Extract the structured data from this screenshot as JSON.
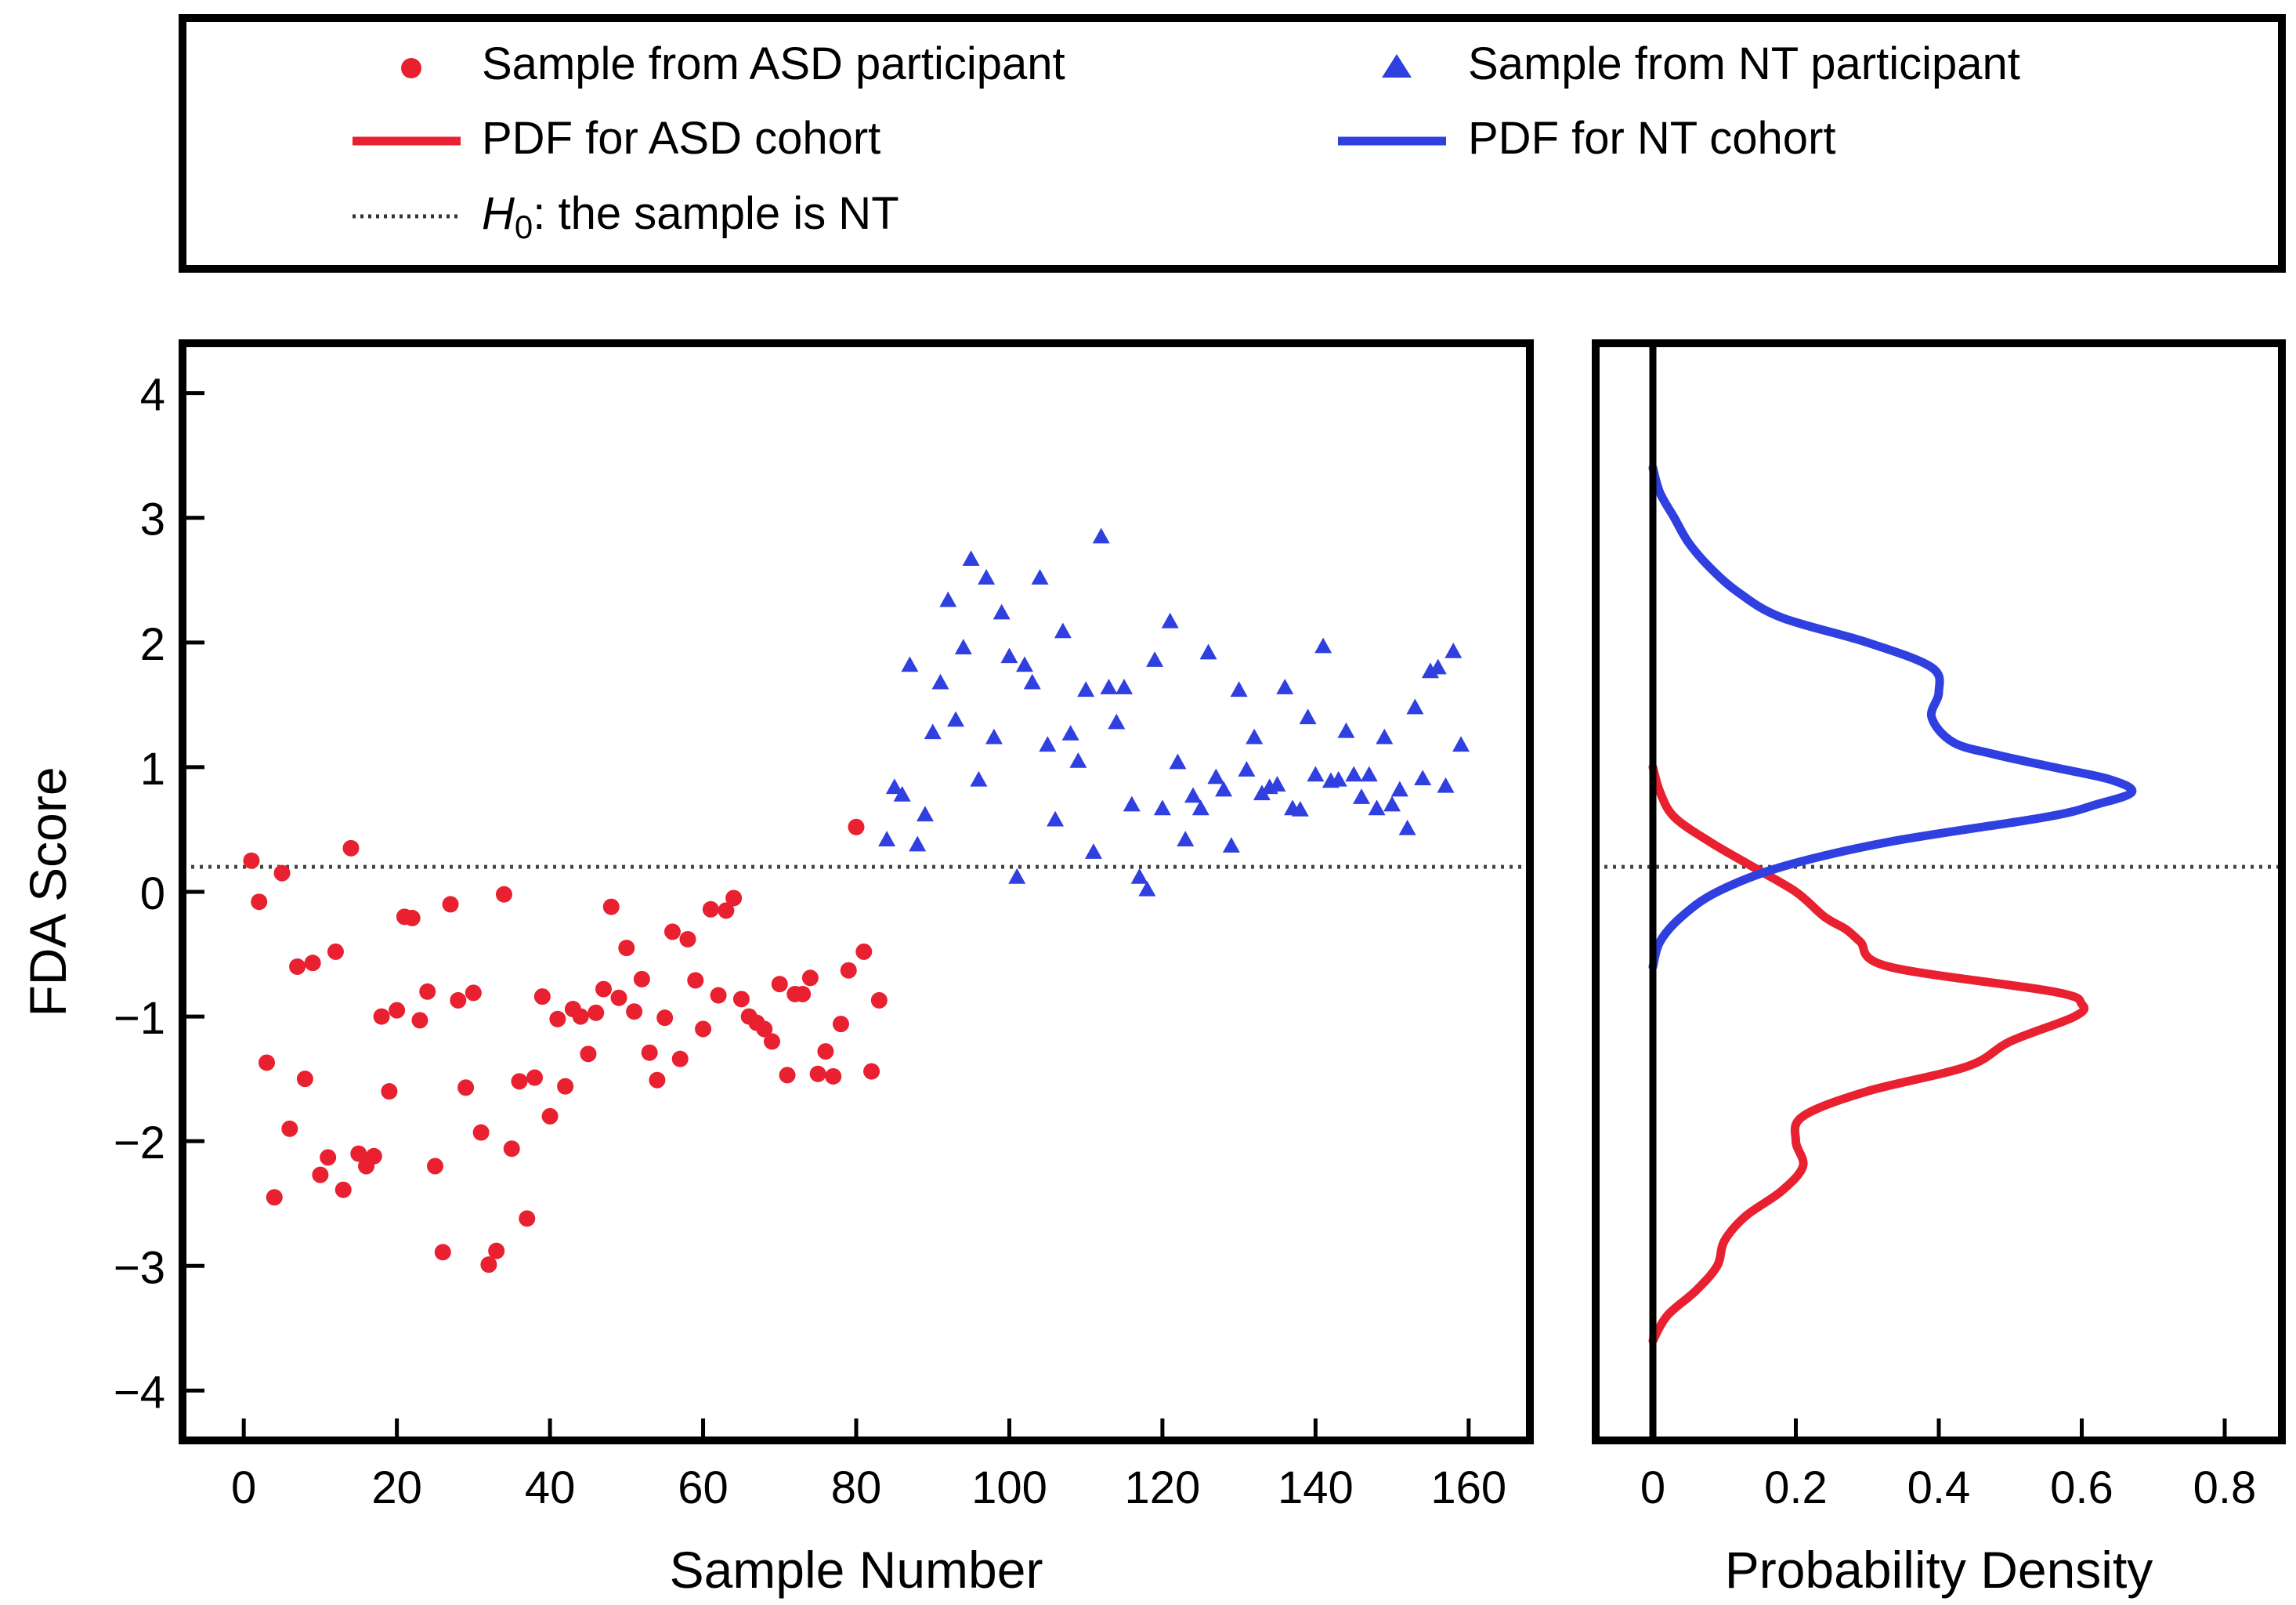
{
  "legend": {
    "entries": [
      {
        "id": "asd-sample",
        "label": "Sample from ASD participant",
        "marker": "circle",
        "color": "#e8202f"
      },
      {
        "id": "nt-sample",
        "label": "Sample from NT participant",
        "marker": "triangle",
        "color": "#2f3fe0"
      },
      {
        "id": "asd-pdf",
        "label": "PDF for ASD cohort",
        "marker": "line",
        "color": "#e8202f"
      },
      {
        "id": "nt-pdf",
        "label": "PDF for NT cohort",
        "marker": "line",
        "color": "#2f3fe0"
      },
      {
        "id": "h0",
        "label_prefix": "H",
        "label_sub": "0",
        "label_suffix": ": the sample is NT",
        "marker": "dotted",
        "color": "#333333"
      }
    ]
  },
  "chart_data": [
    {
      "id": "scatter",
      "type": "scatter",
      "xlabel": "Sample Number",
      "ylabel": "FDA Score",
      "xlim": [
        -8,
        168
      ],
      "ylim": [
        -4.4,
        4.4
      ],
      "xticks": [
        0,
        20,
        40,
        60,
        80,
        100,
        120,
        140,
        160
      ],
      "yticks": [
        -4,
        -3,
        -2,
        -1,
        0,
        1,
        2,
        3,
        4
      ],
      "ytick_labels": [
        "−4",
        "−3",
        "−2",
        "−1",
        "0",
        "1",
        "2",
        "3",
        "4"
      ],
      "threshold": 0.2,
      "series": [
        {
          "name": "Sample from ASD participant",
          "color": "#e8202f",
          "marker": "circle",
          "x": [
            1,
            2,
            3,
            4,
            5,
            6,
            7,
            8,
            9,
            10,
            11,
            12,
            13,
            14,
            15,
            16,
            17,
            18,
            19,
            20,
            21,
            22,
            23,
            24,
            25,
            26,
            27,
            28,
            29,
            30,
            31,
            32,
            33,
            34,
            35,
            36,
            37,
            38,
            39,
            40,
            41,
            42,
            43,
            44,
            45,
            46,
            47,
            48,
            49,
            50,
            51,
            52,
            53,
            54,
            55,
            56,
            57,
            58,
            59,
            60,
            61,
            62,
            63,
            64,
            65,
            66,
            67,
            68,
            69,
            70,
            71,
            72,
            73,
            74,
            75,
            76,
            77,
            78,
            79,
            80,
            81,
            82,
            83
          ],
          "y": [
            0.25,
            -0.08,
            -1.37,
            -2.45,
            0.15,
            -1.9,
            -0.6,
            -1.5,
            -0.57,
            -2.27,
            -2.13,
            -0.48,
            -2.39,
            0.35,
            -2.1,
            -2.2,
            -2.12,
            -1.0,
            -1.6,
            -0.95,
            -0.2,
            -0.21,
            -1.03,
            -0.8,
            -2.2,
            -2.89,
            -0.1,
            -0.87,
            -1.57,
            -0.81,
            -1.93,
            -2.99,
            -2.88,
            -0.02,
            -2.06,
            -1.52,
            -2.62,
            -1.49,
            -0.84,
            -1.8,
            -1.02,
            -1.56,
            -0.94,
            -1.0,
            -1.3,
            -0.97,
            -0.78,
            -0.12,
            -0.85,
            -0.45,
            -0.96,
            -0.7,
            -1.29,
            -1.51,
            -1.01,
            -0.32,
            -1.34,
            -0.38,
            -0.71,
            -1.1,
            -0.14,
            -0.83,
            -0.15,
            -0.05,
            -0.86,
            -1.0,
            -1.05,
            -1.1,
            -1.2,
            -0.74,
            -1.47,
            -0.82,
            -0.82,
            -0.69,
            -1.46,
            -1.28,
            -1.48,
            -1.06,
            -0.63,
            0.52,
            -0.48,
            -1.44,
            -0.87
          ]
        },
        {
          "name": "Sample from NT participant",
          "color": "#2f3fe0",
          "marker": "triangle",
          "x": [
            84,
            85,
            86,
            87,
            88,
            89,
            90,
            91,
            92,
            93,
            94,
            95,
            96,
            97,
            98,
            99,
            100,
            101,
            102,
            103,
            104,
            105,
            106,
            107,
            108,
            109,
            110,
            111,
            112,
            113,
            114,
            115,
            116,
            117,
            118,
            119,
            120,
            121,
            122,
            123,
            124,
            125,
            126,
            127,
            128,
            129,
            130,
            131,
            132,
            133,
            134,
            135,
            136,
            137,
            138,
            139,
            140,
            141,
            142,
            143,
            144,
            145,
            146,
            147,
            148,
            149,
            150,
            151,
            152,
            153,
            154,
            155,
            156,
            157,
            158,
            159
          ],
          "y": [
            0.42,
            0.84,
            0.78,
            1.82,
            0.38,
            0.62,
            1.28,
            1.68,
            2.34,
            1.38,
            1.96,
            2.67,
            0.9,
            2.52,
            1.24,
            2.24,
            1.89,
            0.12,
            1.82,
            1.68,
            2.52,
            1.18,
            0.58,
            2.09,
            1.27,
            1.05,
            1.62,
            0.32,
            2.85,
            1.64,
            1.36,
            1.64,
            0.7,
            0.12,
            0.02,
            1.86,
            0.67,
            2.17,
            1.04,
            0.42,
            0.77,
            0.67,
            1.92,
            0.92,
            0.82,
            0.37,
            1.62,
            0.98,
            1.24,
            0.79,
            0.84,
            0.86,
            1.64,
            0.67,
            0.66,
            1.4,
            0.94,
            1.97,
            0.89,
            0.9,
            1.29,
            0.94,
            0.76,
            0.94,
            0.67,
            1.24,
            0.7,
            0.82,
            0.51,
            1.48,
            0.91,
            1.77,
            1.8,
            0.85,
            1.93,
            1.18
          ]
        }
      ]
    },
    {
      "id": "density",
      "type": "line",
      "xlabel": "Probability Density",
      "xlim": [
        -0.08,
        0.88
      ],
      "ylim": [
        -4.4,
        4.4
      ],
      "xticks": [
        0,
        0.2,
        0.4,
        0.6,
        0.8
      ],
      "xtick_labels": [
        "0",
        "0.2",
        "0.4",
        "0.6",
        "0.8"
      ],
      "threshold": 0.2,
      "series": [
        {
          "name": "PDF for ASD cohort",
          "color": "#e8202f",
          "y": [
            -3.6,
            -3.4,
            -3.2,
            -3.0,
            -2.8,
            -2.6,
            -2.4,
            -2.2,
            -2.0,
            -1.8,
            -1.6,
            -1.4,
            -1.2,
            -1.0,
            -0.9,
            -0.8,
            -0.6,
            -0.4,
            -0.3,
            -0.2,
            0.0,
            0.2,
            0.4,
            0.6,
            0.8,
            1.0
          ],
          "density": [
            0.0,
            0.02,
            0.06,
            0.09,
            0.1,
            0.13,
            0.18,
            0.21,
            0.2,
            0.21,
            0.3,
            0.44,
            0.5,
            0.59,
            0.6,
            0.56,
            0.33,
            0.29,
            0.27,
            0.24,
            0.2,
            0.14,
            0.08,
            0.03,
            0.01,
            0.0
          ]
        },
        {
          "name": "PDF for NT cohort",
          "color": "#2f3fe0",
          "y": [
            -0.6,
            -0.4,
            -0.2,
            0.0,
            0.2,
            0.4,
            0.6,
            0.7,
            0.8,
            0.9,
            1.0,
            1.1,
            1.2,
            1.4,
            1.6,
            1.8,
            2.0,
            2.2,
            2.4,
            2.6,
            2.8,
            3.0,
            3.2,
            3.4
          ],
          "density": [
            0.0,
            0.01,
            0.04,
            0.09,
            0.18,
            0.33,
            0.55,
            0.62,
            0.67,
            0.64,
            0.56,
            0.48,
            0.42,
            0.39,
            0.4,
            0.39,
            0.3,
            0.18,
            0.12,
            0.08,
            0.05,
            0.03,
            0.01,
            0.0
          ]
        }
      ]
    }
  ]
}
